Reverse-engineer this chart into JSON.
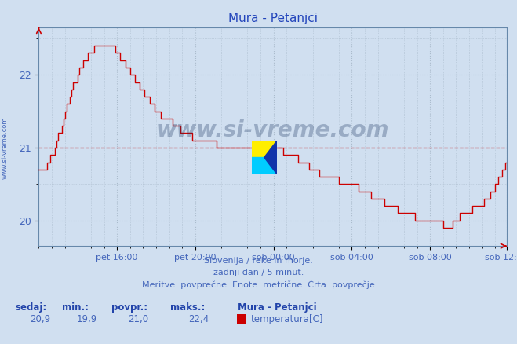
{
  "title": "Mura - Petanjci",
  "title_color": "#2244bb",
  "bg_color": "#d0dff0",
  "plot_bg_color": "#d0dff0",
  "line_color": "#cc0000",
  "avg_line_color": "#cc0000",
  "avg_value": 21.0,
  "ylabel_text": "www.si-vreme.com",
  "xlabel_texts": [
    "pet 16:00",
    "pet 20:00",
    "sob 00:00",
    "sob 04:00",
    "sob 08:00",
    "sob 12:00"
  ],
  "grid_color": "#aabbcc",
  "yticks": [
    20,
    21,
    22
  ],
  "ylim_min": 19.65,
  "ylim_max": 22.65,
  "subtitle1": "Slovenija / reke in morje.",
  "subtitle2": "zadnji dan / 5 minut.",
  "subtitle3": "Meritve: povprečne  Enote: metrične  Črta: povprečje",
  "footer_labels": [
    "sedaj:",
    "min.:",
    "povpr.:",
    "maks.:"
  ],
  "footer_values": [
    "20,9",
    "19,9",
    "21,0",
    "22,4"
  ],
  "footer_series_label": "Mura - Petanjci",
  "footer_series_desc": "temperatura[C]",
  "footer_color": "#2244aa",
  "text_color": "#4466bb",
  "watermark": "www.si-vreme.com"
}
